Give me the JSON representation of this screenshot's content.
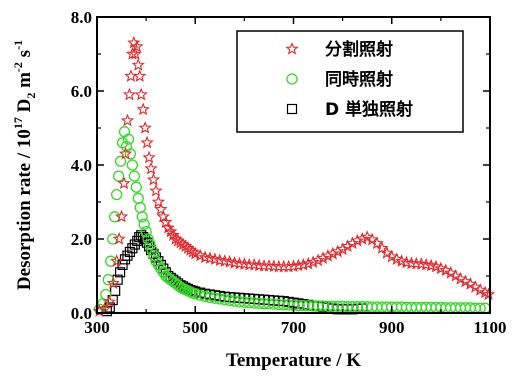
{
  "chart_data": {
    "type": "scatter",
    "xlabel": "Temperature / K",
    "ylabel": {
      "prefix": "Desorption rate / 10",
      "exp": "17",
      "unit_d": " D",
      "sub": "2",
      "unit_m": " m",
      "exp_m": "-2",
      "unit_s": " s",
      "exp_s": "-1"
    },
    "xlim": [
      300,
      1100
    ],
    "ylim": [
      0,
      8
    ],
    "xticks": [
      "300",
      "500",
      "700",
      "900",
      "1100"
    ],
    "yticks": [
      "0.0",
      "2.0",
      "4.0",
      "6.0",
      "8.0"
    ],
    "legend_position": "top-right",
    "series": [
      {
        "name": "分割照射",
        "marker": "star",
        "color": "#e8262a",
        "points": [
          [
            305,
            0.05
          ],
          [
            315,
            0.1
          ],
          [
            325,
            0.3
          ],
          [
            333,
            0.8
          ],
          [
            340,
            1.4
          ],
          [
            345,
            2.0
          ],
          [
            350,
            2.6
          ],
          [
            355,
            3.5
          ],
          [
            358,
            4.3
          ],
          [
            362,
            5.2
          ],
          [
            366,
            5.9
          ],
          [
            369,
            6.4
          ],
          [
            372,
            7.0
          ],
          [
            375,
            7.3
          ],
          [
            378,
            7.0
          ],
          [
            381,
            7.2
          ],
          [
            384,
            6.7
          ],
          [
            387,
            6.4
          ],
          [
            390,
            5.9
          ],
          [
            394,
            5.5
          ],
          [
            398,
            5.0
          ],
          [
            402,
            4.6
          ],
          [
            406,
            4.2
          ],
          [
            410,
            3.9
          ],
          [
            415,
            3.6
          ],
          [
            420,
            3.3
          ],
          [
            425,
            3.0
          ],
          [
            430,
            2.8
          ],
          [
            435,
            2.6
          ],
          [
            440,
            2.45
          ],
          [
            445,
            2.3
          ],
          [
            450,
            2.2
          ],
          [
            455,
            2.1
          ],
          [
            460,
            2.0
          ],
          [
            465,
            1.95
          ],
          [
            470,
            1.9
          ],
          [
            475,
            1.85
          ],
          [
            480,
            1.8
          ],
          [
            485,
            1.75
          ],
          [
            490,
            1.7
          ],
          [
            495,
            1.65
          ],
          [
            500,
            1.6
          ],
          [
            510,
            1.55
          ],
          [
            520,
            1.5
          ],
          [
            530,
            1.48
          ],
          [
            540,
            1.45
          ],
          [
            550,
            1.42
          ],
          [
            560,
            1.4
          ],
          [
            570,
            1.38
          ],
          [
            580,
            1.35
          ],
          [
            590,
            1.33
          ],
          [
            600,
            1.32
          ],
          [
            610,
            1.3
          ],
          [
            620,
            1.3
          ],
          [
            630,
            1.28
          ],
          [
            640,
            1.27
          ],
          [
            650,
            1.27
          ],
          [
            660,
            1.26
          ],
          [
            670,
            1.25
          ],
          [
            680,
            1.25
          ],
          [
            690,
            1.25
          ],
          [
            700,
            1.26
          ],
          [
            710,
            1.28
          ],
          [
            720,
            1.3
          ],
          [
            730,
            1.33
          ],
          [
            740,
            1.37
          ],
          [
            750,
            1.42
          ],
          [
            760,
            1.48
          ],
          [
            770,
            1.54
          ],
          [
            780,
            1.6
          ],
          [
            790,
            1.66
          ],
          [
            800,
            1.72
          ],
          [
            810,
            1.8
          ],
          [
            820,
            1.88
          ],
          [
            830,
            1.95
          ],
          [
            840,
            2.0
          ],
          [
            850,
            2.05
          ],
          [
            860,
            1.98
          ],
          [
            870,
            1.88
          ],
          [
            880,
            1.75
          ],
          [
            890,
            1.62
          ],
          [
            900,
            1.52
          ],
          [
            910,
            1.45
          ],
          [
            920,
            1.4
          ],
          [
            930,
            1.36
          ],
          [
            940,
            1.34
          ],
          [
            950,
            1.33
          ],
          [
            960,
            1.32
          ],
          [
            970,
            1.3
          ],
          [
            980,
            1.28
          ],
          [
            990,
            1.25
          ],
          [
            1000,
            1.2
          ],
          [
            1010,
            1.15
          ],
          [
            1020,
            1.08
          ],
          [
            1030,
            1.0
          ],
          [
            1040,
            0.92
          ],
          [
            1050,
            0.85
          ],
          [
            1060,
            0.78
          ],
          [
            1070,
            0.7
          ],
          [
            1080,
            0.62
          ],
          [
            1090,
            0.55
          ],
          [
            1097,
            0.5
          ]
        ]
      },
      {
        "name": "同時照射",
        "marker": "circle",
        "color": "#33dd22",
        "points": [
          [
            305,
            0.1
          ],
          [
            312,
            0.25
          ],
          [
            318,
            0.5
          ],
          [
            323,
            0.9
          ],
          [
            328,
            1.4
          ],
          [
            332,
            2.0
          ],
          [
            336,
            2.6
          ],
          [
            340,
            3.2
          ],
          [
            344,
            3.7
          ],
          [
            348,
            4.1
          ],
          [
            352,
            4.6
          ],
          [
            356,
            4.9
          ],
          [
            360,
            4.5
          ],
          [
            364,
            4.7
          ],
          [
            368,
            4.3
          ],
          [
            372,
            4.0
          ],
          [
            376,
            3.7
          ],
          [
            380,
            3.4
          ],
          [
            384,
            3.1
          ],
          [
            388,
            2.85
          ],
          [
            392,
            2.6
          ],
          [
            396,
            2.4
          ],
          [
            400,
            2.2
          ],
          [
            404,
            2.0
          ],
          [
            408,
            1.85
          ],
          [
            412,
            1.7
          ],
          [
            416,
            1.55
          ],
          [
            420,
            1.4
          ],
          [
            425,
            1.3
          ],
          [
            430,
            1.2
          ],
          [
            435,
            1.1
          ],
          [
            440,
            1.0
          ],
          [
            445,
            0.95
          ],
          [
            450,
            0.9
          ],
          [
            455,
            0.85
          ],
          [
            460,
            0.8
          ],
          [
            465,
            0.75
          ],
          [
            470,
            0.7
          ],
          [
            475,
            0.66
          ],
          [
            480,
            0.63
          ],
          [
            485,
            0.6
          ],
          [
            490,
            0.57
          ],
          [
            495,
            0.54
          ],
          [
            500,
            0.52
          ],
          [
            510,
            0.48
          ],
          [
            520,
            0.45
          ],
          [
            530,
            0.42
          ],
          [
            540,
            0.4
          ],
          [
            550,
            0.38
          ],
          [
            560,
            0.36
          ],
          [
            570,
            0.34
          ],
          [
            580,
            0.32
          ],
          [
            590,
            0.3
          ],
          [
            600,
            0.29
          ],
          [
            610,
            0.28
          ],
          [
            620,
            0.27
          ],
          [
            630,
            0.26
          ],
          [
            640,
            0.25
          ],
          [
            650,
            0.25
          ],
          [
            660,
            0.24
          ],
          [
            670,
            0.23
          ],
          [
            680,
            0.22
          ],
          [
            690,
            0.22
          ],
          [
            700,
            0.21
          ],
          [
            710,
            0.2
          ],
          [
            720,
            0.2
          ],
          [
            730,
            0.2
          ],
          [
            740,
            0.19
          ],
          [
            750,
            0.19
          ],
          [
            760,
            0.19
          ],
          [
            770,
            0.18
          ],
          [
            780,
            0.18
          ],
          [
            790,
            0.18
          ],
          [
            800,
            0.18
          ],
          [
            810,
            0.17
          ],
          [
            820,
            0.17
          ],
          [
            830,
            0.17
          ],
          [
            840,
            0.17
          ],
          [
            850,
            0.17
          ],
          [
            860,
            0.16
          ],
          [
            870,
            0.16
          ],
          [
            880,
            0.16
          ],
          [
            890,
            0.16
          ],
          [
            900,
            0.16
          ],
          [
            910,
            0.16
          ],
          [
            920,
            0.16
          ],
          [
            930,
            0.15
          ],
          [
            940,
            0.15
          ],
          [
            950,
            0.15
          ],
          [
            960,
            0.15
          ],
          [
            970,
            0.15
          ],
          [
            980,
            0.15
          ],
          [
            990,
            0.15
          ],
          [
            1000,
            0.15
          ],
          [
            1010,
            0.14
          ],
          [
            1020,
            0.14
          ],
          [
            1030,
            0.14
          ],
          [
            1040,
            0.14
          ],
          [
            1050,
            0.14
          ],
          [
            1060,
            0.14
          ],
          [
            1070,
            0.13
          ],
          [
            1080,
            0.13
          ],
          [
            1090,
            0.13
          ]
        ]
      },
      {
        "name": "D 単独照射",
        "marker": "square",
        "color": "#000000",
        "points": [
          [
            320,
            0.05
          ],
          [
            326,
            0.15
          ],
          [
            332,
            0.35
          ],
          [
            337,
            0.6
          ],
          [
            342,
            0.9
          ],
          [
            347,
            1.1
          ],
          [
            352,
            1.3
          ],
          [
            357,
            1.45
          ],
          [
            362,
            1.55
          ],
          [
            367,
            1.65
          ],
          [
            372,
            1.75
          ],
          [
            377,
            1.85
          ],
          [
            382,
            1.95
          ],
          [
            386,
            2.05
          ],
          [
            390,
            2.1
          ],
          [
            394,
            2.05
          ],
          [
            398,
            2.0
          ],
          [
            402,
            1.9
          ],
          [
            406,
            1.8
          ],
          [
            410,
            1.7
          ],
          [
            415,
            1.6
          ],
          [
            420,
            1.5
          ],
          [
            425,
            1.4
          ],
          [
            430,
            1.3
          ],
          [
            435,
            1.2
          ],
          [
            440,
            1.1
          ],
          [
            445,
            1.0
          ],
          [
            450,
            0.95
          ],
          [
            455,
            0.9
          ],
          [
            460,
            0.85
          ],
          [
            465,
            0.8
          ],
          [
            470,
            0.75
          ],
          [
            475,
            0.72
          ],
          [
            480,
            0.68
          ],
          [
            485,
            0.65
          ],
          [
            490,
            0.62
          ],
          [
            495,
            0.6
          ],
          [
            500,
            0.58
          ],
          [
            510,
            0.55
          ],
          [
            520,
            0.52
          ],
          [
            530,
            0.5
          ],
          [
            540,
            0.48
          ],
          [
            550,
            0.46
          ],
          [
            560,
            0.44
          ],
          [
            570,
            0.43
          ],
          [
            580,
            0.42
          ],
          [
            590,
            0.41
          ],
          [
            600,
            0.4
          ],
          [
            610,
            0.39
          ],
          [
            620,
            0.38
          ],
          [
            630,
            0.37
          ],
          [
            640,
            0.36
          ],
          [
            650,
            0.35
          ],
          [
            660,
            0.34
          ],
          [
            670,
            0.33
          ],
          [
            680,
            0.32
          ],
          [
            690,
            0.3
          ],
          [
            700,
            0.28
          ],
          [
            710,
            0.26
          ],
          [
            720,
            0.24
          ],
          [
            730,
            0.22
          ],
          [
            740,
            0.2
          ],
          [
            750,
            0.18
          ],
          [
            760,
            0.16
          ],
          [
            770,
            0.14
          ],
          [
            780,
            0.12
          ],
          [
            790,
            0.1
          ],
          [
            800,
            0.1
          ],
          [
            810,
            0.1
          ],
          [
            820,
            0.1
          ],
          [
            830,
            0.11
          ],
          [
            840,
            0.12
          ]
        ]
      }
    ]
  }
}
